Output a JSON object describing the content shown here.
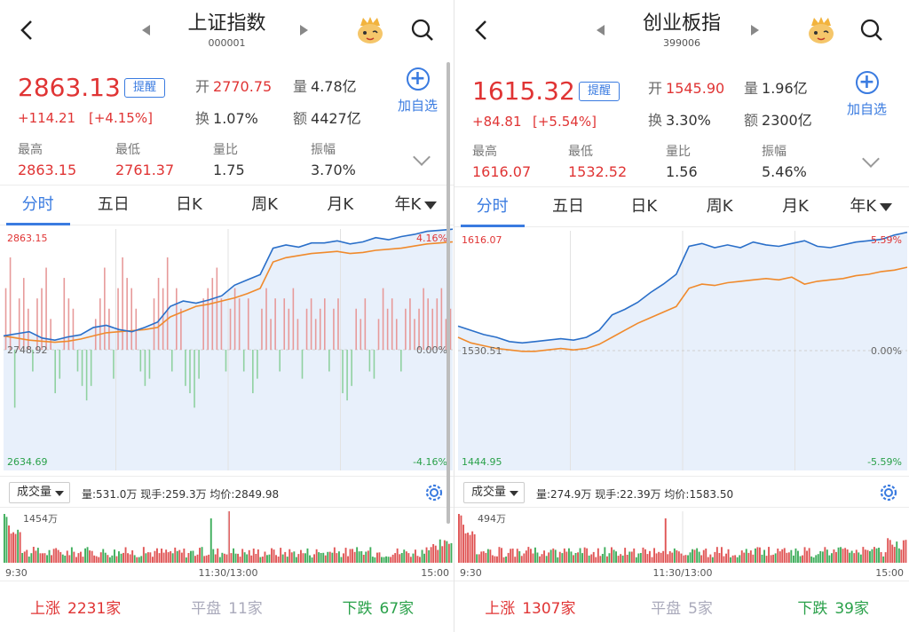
{
  "panels": [
    {
      "title": "上证指数",
      "code": "000001",
      "price": "2863.13",
      "alert_label": "提醒",
      "change": "+114.21",
      "change_pct": "[+4.15%]",
      "open_label": "开",
      "open": "2770.75",
      "volume_label": "量",
      "volume": "4.78亿",
      "turnover_label": "换",
      "turnover": "1.07%",
      "amount_label": "额",
      "amount": "4427亿",
      "add_label": "加自选",
      "stats": [
        {
          "label": "最高",
          "value": "2863.15",
          "tone": "red"
        },
        {
          "label": "最低",
          "value": "2761.37",
          "tone": "red"
        },
        {
          "label": "量比",
          "value": "1.75",
          "tone": "dark"
        },
        {
          "label": "振幅",
          "value": "3.70%",
          "tone": "dark"
        }
      ],
      "tabs": [
        "分时",
        "五日",
        "日K",
        "周K",
        "月K",
        "年K"
      ],
      "chart": {
        "y_top": "2863.15",
        "y_mid": "2748.92",
        "y_bottom": "2634.69",
        "pct_top": "4.16%",
        "pct_mid": "0.00%",
        "pct_bottom": "-4.16%",
        "price_line": [
          2762,
          2764,
          2766,
          2760,
          2758,
          2761,
          2763,
          2770,
          2772,
          2768,
          2766,
          2770,
          2775,
          2790,
          2795,
          2793,
          2796,
          2800,
          2810,
          2815,
          2820,
          2845,
          2848,
          2846,
          2850,
          2850,
          2852,
          2849,
          2851,
          2855,
          2853,
          2856,
          2858,
          2861,
          2862,
          2863
        ],
        "avg_line": [
          2762,
          2760,
          2758,
          2757,
          2756,
          2757,
          2759,
          2762,
          2765,
          2766,
          2767,
          2768,
          2770,
          2780,
          2785,
          2790,
          2792,
          2795,
          2798,
          2802,
          2807,
          2832,
          2836,
          2838,
          2840,
          2841,
          2842,
          2840,
          2841,
          2843,
          2844,
          2845,
          2847,
          2849,
          2850,
          2851
        ],
        "histogram": [
          0.6,
          0.9,
          -0.8,
          0.5,
          0.7,
          0.4,
          -0.3,
          0.5,
          0.6,
          0.8,
          0.3,
          -0.6,
          -0.4,
          0.7,
          0.5,
          0.4,
          -0.3,
          -0.5,
          -0.7,
          -0.5,
          0.3,
          0.5,
          0.8,
          0.4,
          -0.4,
          0.6,
          0.9,
          0.7,
          0.6,
          0.4,
          -0.3,
          -0.5,
          -0.4,
          0.5,
          0.7,
          0.6,
          0.9,
          -0.3,
          0.6,
          0.4,
          -0.5,
          -0.6,
          -0.8,
          -0.4,
          0.5,
          0.6,
          0.7,
          0.8,
          0.5,
          -0.3,
          0.4,
          0.6,
          0.5,
          -0.3,
          0.5,
          -0.6,
          -0.4,
          0.4,
          0.6,
          0.3,
          0.5,
          -0.3,
          0.5,
          0.4,
          0.6,
          0.3,
          -0.4,
          0.4,
          0.5,
          0.3,
          0.4,
          0.5,
          -0.3,
          0.4,
          0.5,
          -0.6,
          -0.7,
          -0.5,
          0.4,
          0.3,
          0.5,
          -0.3,
          -0.4,
          0.3,
          0.6,
          0.4,
          0.5,
          0.3,
          -0.3,
          0.4,
          0.5,
          0.3,
          0.4,
          0.6,
          0.5,
          0.4,
          0.5,
          0.6,
          0.3,
          0.4
        ]
      },
      "vol_select": "成交量",
      "vol_stats": "量:531.0万  现手:259.3万  均价:2849.98",
      "vol_max": "1454万",
      "time_start": "9:30",
      "time_mid": "11:30/13:00",
      "time_end": "15:00",
      "breadth": {
        "up_label": "上涨",
        "up": "2231家",
        "flat_label": "平盘",
        "flat": "11家",
        "down_label": "下跌",
        "down": "67家"
      }
    },
    {
      "title": "创业板指",
      "code": "399006",
      "price": "1615.32",
      "alert_label": "提醒",
      "change": "+84.81",
      "change_pct": "[+5.54%]",
      "open_label": "开",
      "open": "1545.90",
      "volume_label": "量",
      "volume": "1.96亿",
      "turnover_label": "换",
      "turnover": "3.30%",
      "amount_label": "额",
      "amount": "2300亿",
      "add_label": "加自选",
      "stats": [
        {
          "label": "最高",
          "value": "1616.07",
          "tone": "red"
        },
        {
          "label": "最低",
          "value": "1532.52",
          "tone": "red"
        },
        {
          "label": "量比",
          "value": "1.56",
          "tone": "dark"
        },
        {
          "label": "振幅",
          "value": "5.46%",
          "tone": "dark"
        }
      ],
      "tabs": [
        "分时",
        "五日",
        "日K",
        "周K",
        "月K",
        "年K"
      ],
      "chart": {
        "y_top": "1616.07",
        "y_mid": "1530.51",
        "y_bottom": "1444.95",
        "pct_top": "5.59%",
        "pct_mid": "0.00%",
        "pct_bottom": "-5.59%",
        "price_line": [
          1548,
          1545,
          1542,
          1540,
          1537,
          1536,
          1537,
          1538,
          1539,
          1538,
          1540,
          1545,
          1556,
          1560,
          1565,
          1572,
          1578,
          1585,
          1605,
          1607,
          1604,
          1606,
          1604,
          1608,
          1606,
          1605,
          1607,
          1609,
          1605,
          1604,
          1606,
          1608,
          1609,
          1610,
          1613,
          1615
        ],
        "avg_line": [
          1540,
          1536,
          1534,
          1532,
          1531,
          1530,
          1530,
          1531,
          1532,
          1531,
          1532,
          1535,
          1540,
          1545,
          1550,
          1554,
          1558,
          1562,
          1575,
          1578,
          1577,
          1579,
          1580,
          1581,
          1582,
          1581,
          1583,
          1578,
          1580,
          1581,
          1582,
          1584,
          1585,
          1587,
          1588,
          1590
        ]
      },
      "vol_select": "成交量",
      "vol_stats": "量:274.9万  现手:22.39万  均价:1583.50",
      "vol_max": "494万",
      "time_start": "9:30",
      "time_mid": "11:30/13:00",
      "time_end": "15:00",
      "breadth": {
        "up_label": "上涨",
        "up": "1307家",
        "flat_label": "平盘",
        "flat": "5家",
        "down_label": "下跌",
        "down": "39家"
      }
    }
  ],
  "colors": {
    "up": "#e03434",
    "down": "#2aa14a",
    "price_line": "#2a6fc9",
    "avg_line": "#f08a2c",
    "fill": "#e8f0fb",
    "accent": "#3a7be0"
  }
}
